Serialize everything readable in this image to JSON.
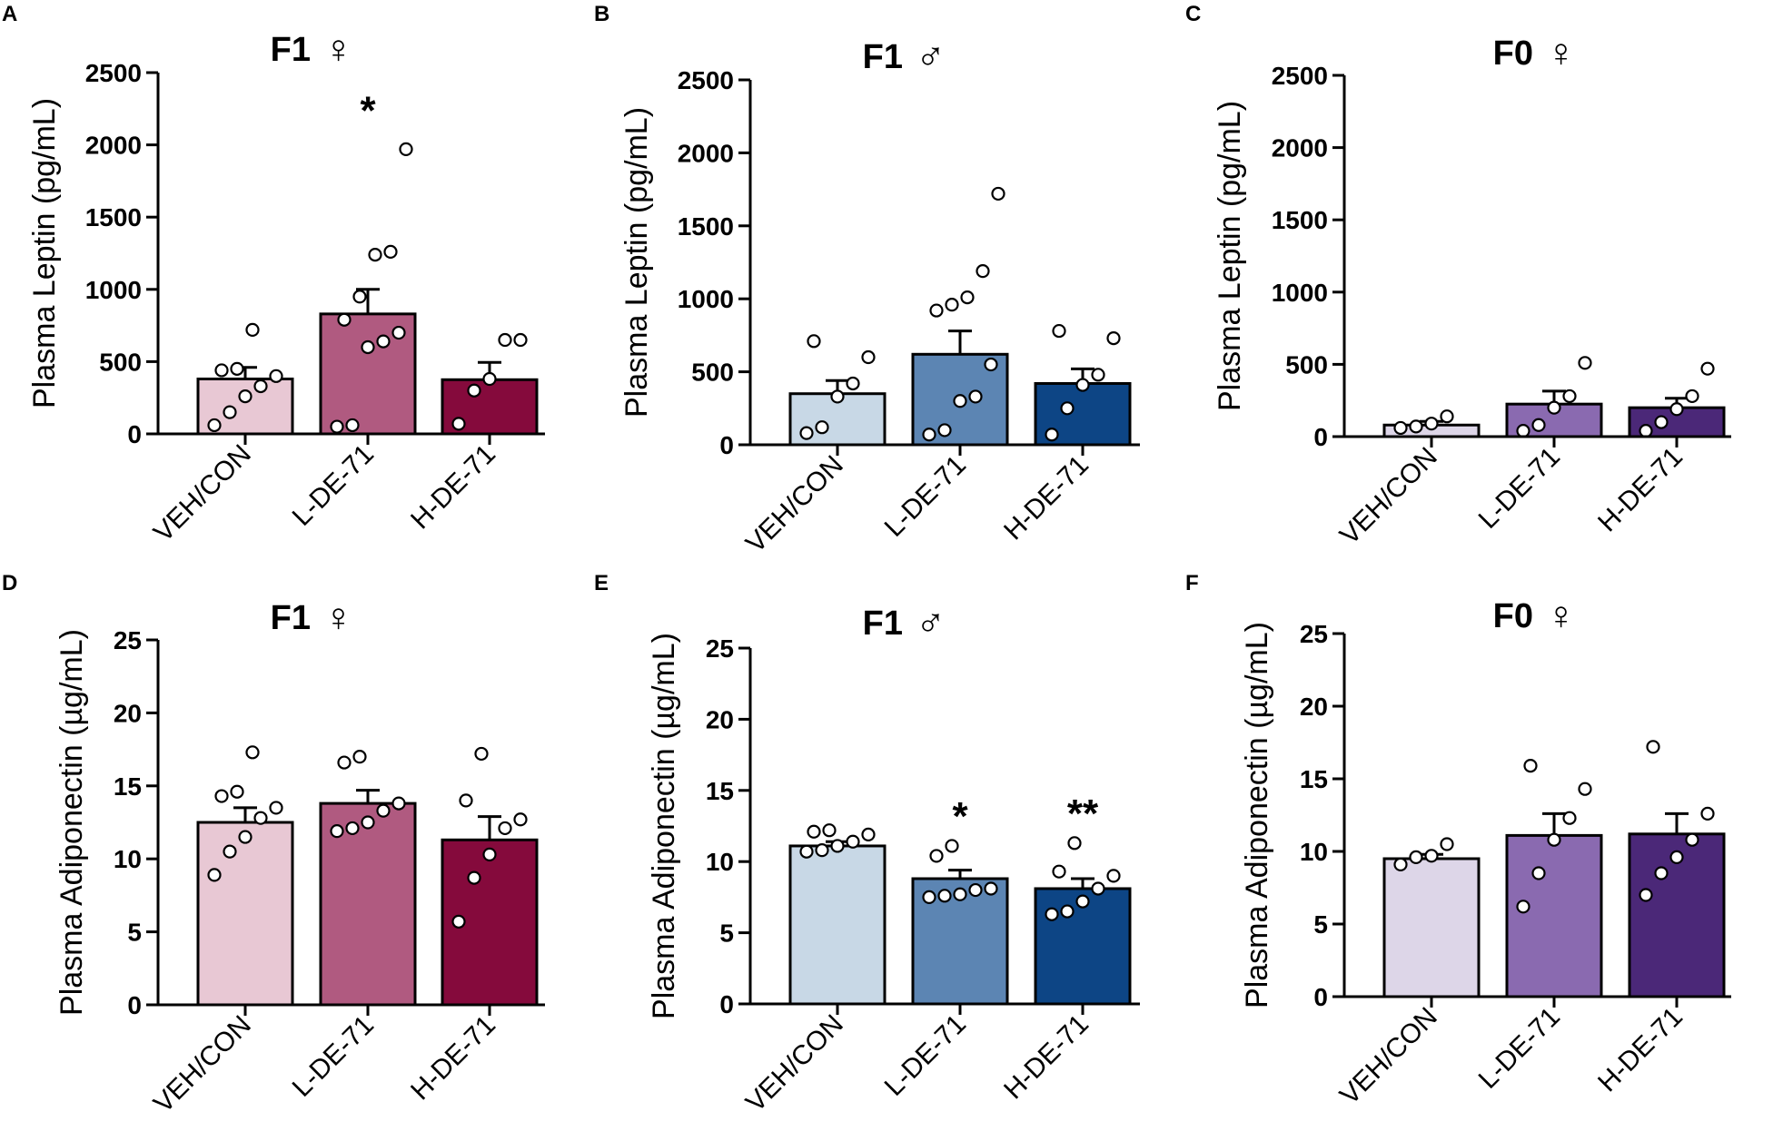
{
  "panels": [
    {
      "letter": "A",
      "title": "F1",
      "sex": "♀",
      "ylabel": "Plasma Leptin (pg/mL)",
      "color": "#e8c8d4",
      "colors": [
        "#e8c8d4",
        "#b05a80",
        "#850a3c"
      ]
    },
    {
      "letter": "B",
      "title": "F1",
      "sex": "♂",
      "ylabel": "Plasma Leptin (pg/mL)",
      "colors": [
        "#c8d8e6",
        "#5c85b3",
        "#0d4585"
      ]
    },
    {
      "letter": "C",
      "title": "F0",
      "sex": "♀",
      "ylabel": "Plasma Leptin (pg/mL)",
      "colors": [
        "#ddd6e8",
        "#8a6ab0",
        "#4b2878"
      ]
    },
    {
      "letter": "D",
      "title": "F1",
      "sex": "♀",
      "ylabel": "Plasma Adiponectin (µg/mL)",
      "colors": [
        "#e8c8d4",
        "#b05a80",
        "#850a3c"
      ]
    },
    {
      "letter": "E",
      "title": "F1",
      "sex": "♂",
      "ylabel": "Plasma Adiponectin (µg/mL)",
      "colors": [
        "#c8d8e6",
        "#5c85b3",
        "#0d4585"
      ]
    },
    {
      "letter": "F",
      "title": "F0",
      "sex": "♀",
      "ylabel": "Plasma Adiponectin (µg/mL)",
      "colors": [
        "#ddd6e8",
        "#8a6ab0",
        "#4b2878"
      ]
    }
  ],
  "chart_data": [
    {
      "panel": "A",
      "type": "bar",
      "title": "F1 ♀",
      "ylabel": "Plasma Leptin (pg/mL)",
      "categories": [
        "VEH/CON",
        "L-DE-71",
        "H-DE-71"
      ],
      "ylim": [
        0,
        2500
      ],
      "yticks": [
        0,
        500,
        1000,
        1500,
        2000,
        2500
      ],
      "values": [
        380,
        830,
        375
      ],
      "sem": [
        80,
        170,
        120
      ],
      "significance": [
        "",
        "*",
        ""
      ],
      "points": [
        [
          60,
          150,
          260,
          330,
          400,
          440,
          450,
          720
        ],
        [
          50,
          60,
          600,
          640,
          700,
          790,
          950,
          1240,
          1260,
          1970
        ],
        [
          70,
          300,
          380,
          650,
          650
        ]
      ]
    },
    {
      "panel": "B",
      "type": "bar",
      "title": "F1 ♂",
      "ylabel": "Plasma Leptin (pg/mL)",
      "categories": [
        "VEH/CON",
        "L-DE-71",
        "H-DE-71"
      ],
      "ylim": [
        0,
        2500
      ],
      "yticks": [
        0,
        500,
        1000,
        1500,
        2000,
        2500
      ],
      "values": [
        350,
        620,
        420
      ],
      "sem": [
        90,
        160,
        100
      ],
      "significance": [
        "",
        "",
        ""
      ],
      "points": [
        [
          80,
          120,
          330,
          420,
          600,
          710
        ],
        [
          70,
          100,
          300,
          330,
          550,
          920,
          960,
          1010,
          1190,
          1720
        ],
        [
          70,
          250,
          410,
          480,
          730,
          780
        ]
      ]
    },
    {
      "panel": "C",
      "type": "bar",
      "title": "F0 ♀",
      "ylabel": "Plasma Leptin (pg/mL)",
      "categories": [
        "VEH/CON",
        "L-DE-71",
        "H-DE-71"
      ],
      "ylim": [
        0,
        2500
      ],
      "yticks": [
        0,
        500,
        1000,
        1500,
        2000,
        2500
      ],
      "values": [
        80,
        225,
        200
      ],
      "sem": [
        25,
        90,
        65
      ],
      "significance": [
        "",
        "",
        ""
      ],
      "points": [
        [
          60,
          70,
          90,
          140
        ],
        [
          40,
          80,
          200,
          280,
          510
        ],
        [
          40,
          100,
          190,
          280,
          470
        ]
      ]
    },
    {
      "panel": "D",
      "type": "bar",
      "title": "F1 ♀",
      "ylabel": "Plasma Adiponectin (µg/mL)",
      "categories": [
        "VEH/CON",
        "L-DE-71",
        "H-DE-71"
      ],
      "ylim": [
        0,
        25
      ],
      "yticks": [
        0,
        5,
        10,
        15,
        20,
        25
      ],
      "values": [
        12.5,
        13.8,
        11.3
      ],
      "sem": [
        1.0,
        0.9,
        1.6
      ],
      "significance": [
        "",
        "",
        ""
      ],
      "points": [
        [
          8.9,
          10.5,
          11.5,
          12.8,
          13.5,
          14.3,
          14.6,
          17.3
        ],
        [
          11.9,
          12.1,
          12.5,
          13.3,
          13.8,
          16.6,
          17.0
        ],
        [
          5.7,
          8.7,
          10.3,
          12.1,
          12.7,
          14.0,
          17.2
        ]
      ]
    },
    {
      "panel": "E",
      "type": "bar",
      "title": "F1 ♂",
      "ylabel": "Plasma Adiponectin (µg/mL)",
      "categories": [
        "VEH/CON",
        "L-DE-71",
        "H-DE-71"
      ],
      "ylim": [
        0,
        25
      ],
      "yticks": [
        0,
        5,
        10,
        15,
        20,
        25
      ],
      "values": [
        11.1,
        8.8,
        8.1
      ],
      "sem": [
        0.3,
        0.6,
        0.7
      ],
      "significance": [
        "",
        "*",
        "**"
      ],
      "points": [
        [
          10.7,
          10.8,
          11.1,
          11.4,
          11.9,
          12.1,
          12.2
        ],
        [
          7.5,
          7.6,
          7.7,
          8.0,
          8.1,
          10.4,
          11.1
        ],
        [
          6.3,
          6.5,
          7.2,
          8.1,
          9.0,
          9.3,
          11.3
        ]
      ]
    },
    {
      "panel": "F",
      "type": "bar",
      "title": "F0 ♀",
      "ylabel": "Plasma Adiponectin (µg/mL)",
      "categories": [
        "VEH/CON",
        "L-DE-71",
        "H-DE-71"
      ],
      "ylim": [
        0,
        25
      ],
      "yticks": [
        0,
        5,
        10,
        15,
        20,
        25
      ],
      "values": [
        9.5,
        11.1,
        11.2
      ],
      "sem": [
        0.3,
        1.5,
        1.4
      ],
      "significance": [
        "",
        "",
        ""
      ],
      "points": [
        [
          9.1,
          9.6,
          9.7,
          10.5
        ],
        [
          6.2,
          8.5,
          10.8,
          12.3,
          14.3,
          15.9
        ],
        [
          7.0,
          8.5,
          9.6,
          10.8,
          12.6,
          17.2
        ]
      ]
    }
  ]
}
